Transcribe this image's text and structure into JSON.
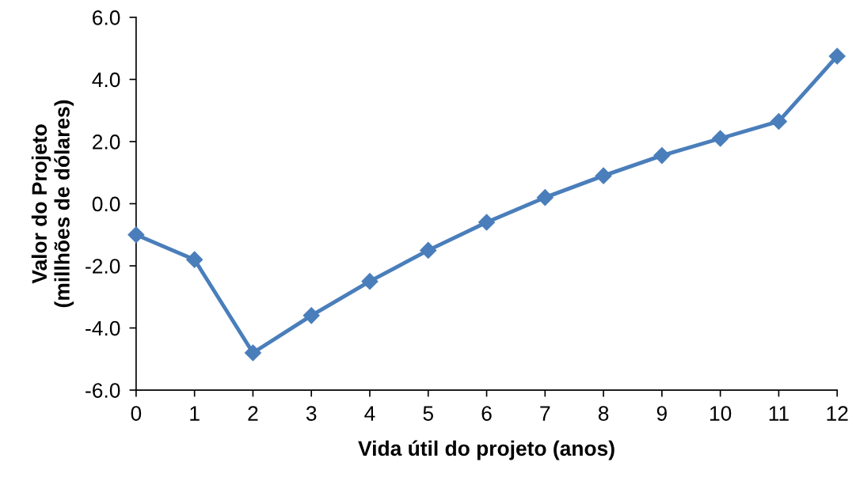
{
  "chart_data": {
    "type": "line",
    "xlabel": "Vida útil do projeto (anos)",
    "ylabel": "Valor do Projeto\n(millhões de dólares)",
    "x": [
      0,
      1,
      2,
      3,
      4,
      5,
      6,
      7,
      8,
      9,
      10,
      11,
      12
    ],
    "series": [
      {
        "color": "#4a7ebb",
        "values": [
          -1.0,
          -1.8,
          -4.8,
          -3.6,
          -2.5,
          -1.5,
          -0.6,
          0.2,
          0.9,
          1.55,
          2.1,
          2.65,
          4.75
        ]
      }
    ],
    "xlim": [
      0,
      12
    ],
    "xticks": [
      0,
      1,
      2,
      3,
      4,
      5,
      6,
      7,
      8,
      9,
      10,
      11,
      12
    ],
    "ylim": [
      -6,
      6
    ],
    "yticks": [
      {
        "value": -6,
        "label": "-6.0"
      },
      {
        "value": -4,
        "label": "-4.0"
      },
      {
        "value": -2,
        "label": "-2.0"
      },
      {
        "value": 0,
        "label": "0.0"
      },
      {
        "value": 2,
        "label": "2.0"
      },
      {
        "value": 4,
        "label": "4.0"
      },
      {
        "value": 6,
        "label": "6.0"
      }
    ],
    "grid": false,
    "legend": false,
    "marker": "diamond",
    "line_style": "solid"
  }
}
